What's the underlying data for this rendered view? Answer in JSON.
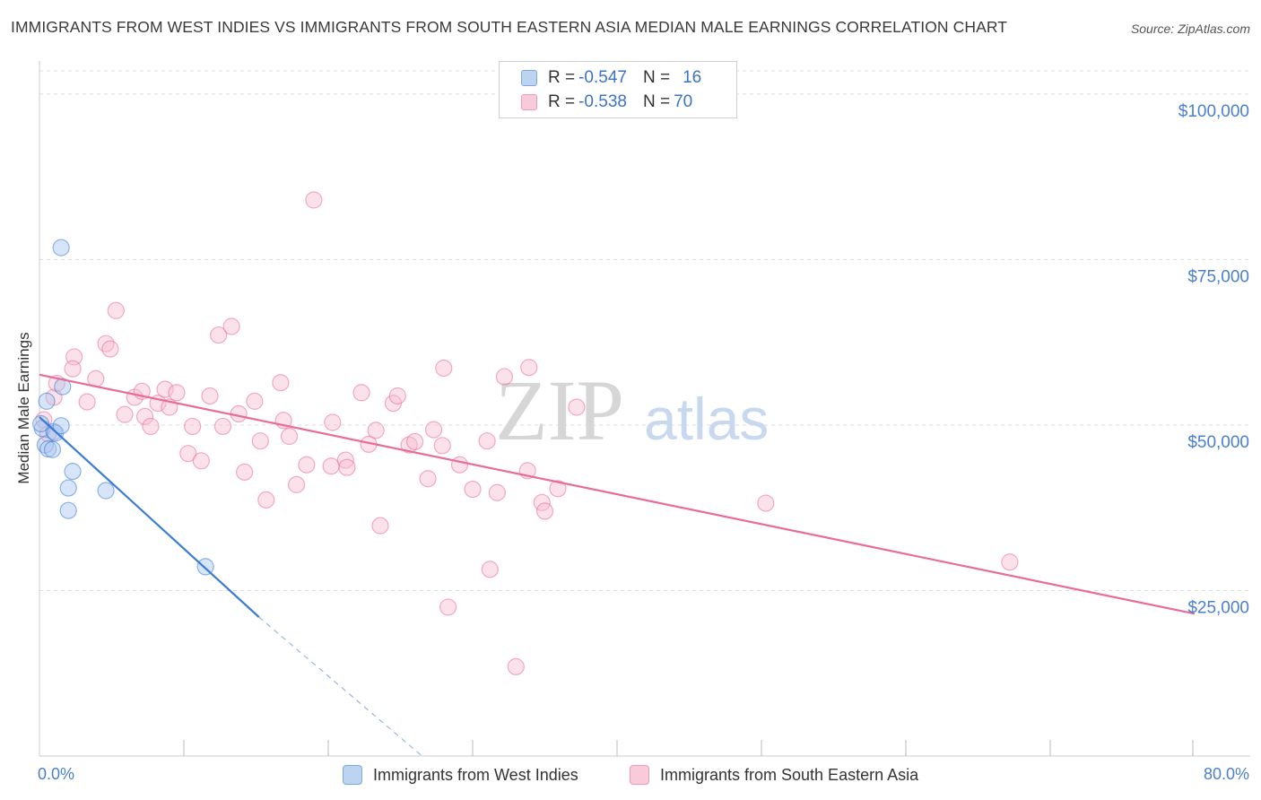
{
  "title": "IMMIGRANTS FROM WEST INDIES VS IMMIGRANTS FROM SOUTH EASTERN ASIA MEDIAN MALE EARNINGS CORRELATION CHART",
  "source": "Source: ZipAtlas.com",
  "watermark": {
    "zip": "ZIP",
    "atlas": "atlas"
  },
  "colors": {
    "blue": "#3a7bd5",
    "blue_fill": "#a9c6ef",
    "pink": "#e96b97",
    "pink_fill": "#f6bfd0",
    "axis_label": "#4a7fd0",
    "grid": "#dddddd"
  },
  "legend": {
    "rows": [
      {
        "r_label": "R = ",
        "r_value": "-0.547",
        "n_label": "N = ",
        "n_value": "16"
      },
      {
        "r_label": "R = ",
        "r_value": "-0.538",
        "n_label": "N = ",
        "n_value": "70"
      }
    ]
  },
  "chart_data": {
    "type": "scatter",
    "title": "IMMIGRANTS FROM WEST INDIES VS IMMIGRANTS FROM SOUTH EASTERN ASIA MEDIAN MALE EARNINGS CORRELATION CHART",
    "xlabel": "",
    "ylabel": "Median Male Earnings",
    "xlim": [
      0,
      80
    ],
    "ylim": [
      0,
      105000
    ],
    "x_tick_labels": {
      "left": "0.0%",
      "right": "80.0%"
    },
    "y_ticks": [
      {
        "value": 100000,
        "label": "$100,000"
      },
      {
        "value": 75000,
        "label": "$75,000"
      },
      {
        "value": 50000,
        "label": "$50,000"
      },
      {
        "value": 25000,
        "label": "$25,000"
      }
    ],
    "series": [
      {
        "name": "Immigrants from West Indies",
        "color": "blue",
        "points": [
          [
            1.5,
            76800
          ],
          [
            0.5,
            53600
          ],
          [
            1.6,
            55800
          ],
          [
            0.2,
            49500
          ],
          [
            0.4,
            47000
          ],
          [
            0.6,
            46400
          ],
          [
            0.9,
            46300
          ],
          [
            1.0,
            49000
          ],
          [
            1.1,
            48800
          ],
          [
            1.5,
            49900
          ],
          [
            2.3,
            43000
          ],
          [
            2.0,
            40500
          ],
          [
            2.0,
            37100
          ],
          [
            4.6,
            40100
          ],
          [
            11.5,
            28600
          ],
          [
            0.1,
            50200
          ]
        ],
        "trend": {
          "x0": 0,
          "y0": 51200,
          "x1": 15.2,
          "y1": 21000,
          "dash_to_x": 26.5,
          "dash_to_y": -1500
        }
      },
      {
        "name": "Immigrants from South Eastern Asia",
        "color": "pink",
        "points": [
          [
            1.0,
            54200
          ],
          [
            1.2,
            56300
          ],
          [
            2.4,
            60300
          ],
          [
            2.3,
            58500
          ],
          [
            3.3,
            53500
          ],
          [
            3.9,
            57000
          ],
          [
            4.6,
            62300
          ],
          [
            4.9,
            61500
          ],
          [
            5.3,
            67300
          ],
          [
            5.9,
            51600
          ],
          [
            6.6,
            54200
          ],
          [
            7.1,
            55100
          ],
          [
            7.3,
            51300
          ],
          [
            7.7,
            49800
          ],
          [
            8.2,
            53300
          ],
          [
            8.7,
            55400
          ],
          [
            9.0,
            52700
          ],
          [
            9.5,
            54900
          ],
          [
            10.3,
            45700
          ],
          [
            10.6,
            49800
          ],
          [
            11.2,
            44600
          ],
          [
            11.8,
            54400
          ],
          [
            12.7,
            49800
          ],
          [
            12.4,
            63600
          ],
          [
            13.3,
            64900
          ],
          [
            13.8,
            51700
          ],
          [
            14.2,
            42900
          ],
          [
            14.9,
            53600
          ],
          [
            15.3,
            47600
          ],
          [
            15.7,
            38700
          ],
          [
            16.7,
            56400
          ],
          [
            16.9,
            50700
          ],
          [
            17.3,
            48300
          ],
          [
            17.8,
            41000
          ],
          [
            18.5,
            44000
          ],
          [
            19.0,
            84000
          ],
          [
            20.2,
            43800
          ],
          [
            20.3,
            50400
          ],
          [
            21.2,
            44700
          ],
          [
            21.3,
            43600
          ],
          [
            22.3,
            54900
          ],
          [
            22.8,
            47100
          ],
          [
            23.3,
            49200
          ],
          [
            23.6,
            34800
          ],
          [
            24.5,
            53300
          ],
          [
            24.8,
            54400
          ],
          [
            25.6,
            47000
          ],
          [
            26.0,
            47500
          ],
          [
            26.9,
            41900
          ],
          [
            27.3,
            49300
          ],
          [
            27.9,
            46900
          ],
          [
            28.0,
            58600
          ],
          [
            28.3,
            22500
          ],
          [
            29.1,
            44000
          ],
          [
            30.0,
            40300
          ],
          [
            31.0,
            47600
          ],
          [
            31.2,
            28200
          ],
          [
            31.7,
            39800
          ],
          [
            32.2,
            57300
          ],
          [
            33.0,
            13500
          ],
          [
            33.8,
            43100
          ],
          [
            33.9,
            58700
          ],
          [
            34.8,
            38300
          ],
          [
            35.0,
            37000
          ],
          [
            35.9,
            40400
          ],
          [
            37.2,
            52700
          ],
          [
            50.3,
            38200
          ],
          [
            67.2,
            29300
          ],
          [
            0.3,
            50800
          ],
          [
            0.6,
            48700
          ]
        ],
        "trend": {
          "x0": 0,
          "y0": 57600,
          "x1": 80,
          "y1": 21500
        }
      }
    ]
  },
  "bottom_legend": [
    {
      "label": "Immigrants from West Indies"
    },
    {
      "label": "Immigrants from South Eastern Asia"
    }
  ]
}
